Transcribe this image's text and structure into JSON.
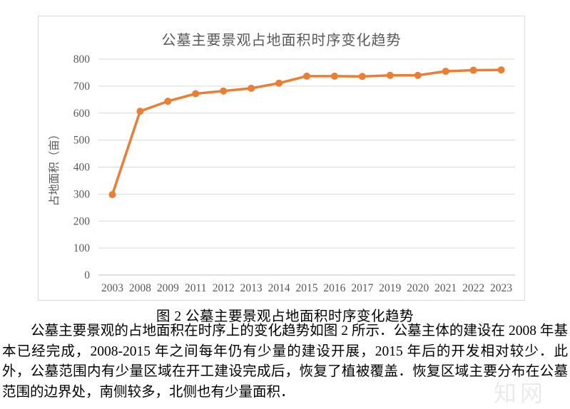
{
  "chart": {
    "title": "公墓主要景观占地面积时序变化趋势",
    "y_axis_title": "占地面积（亩）"
  },
  "chart_data": {
    "type": "line",
    "title": "公墓主要景观占地面积时序变化趋势",
    "xlabel": "",
    "ylabel": "占地面积（亩）",
    "categories": [
      "2003",
      "2008",
      "2009",
      "2011",
      "2012",
      "2013",
      "2014",
      "2015",
      "2016",
      "2017",
      "2019",
      "2020",
      "2021",
      "2022",
      "2023"
    ],
    "values": [
      298,
      607,
      644,
      672,
      682,
      692,
      711,
      737,
      737,
      736,
      740,
      740,
      755,
      759,
      760
    ],
    "ylim": [
      0,
      800
    ],
    "ytick_step": 100,
    "grid": true,
    "legend": "none",
    "line_color": "#ED7D31",
    "marker": "circle",
    "gridline_color": "#d9d9d9",
    "axis_line_color": "#bfbfbf",
    "label_color": "#595959"
  },
  "caption": "图 2  公墓主要景观占地面积时序变化趋势",
  "paragraph": "公墓主要景观的占地面积在时序上的变化趋势如图 2 所示．公墓主体的建设在 2008 年基本已经完成，2008-2015 年之间每年仍有少量的建设开展，2015 年后的开发相对较少．此外，公墓范围内有少量区域在开工建设完成后，恢复了植被覆盖．恢复区域主要分布在公墓范围的边界处，南侧较多，北侧也有少量面积．",
  "watermark": "知网"
}
